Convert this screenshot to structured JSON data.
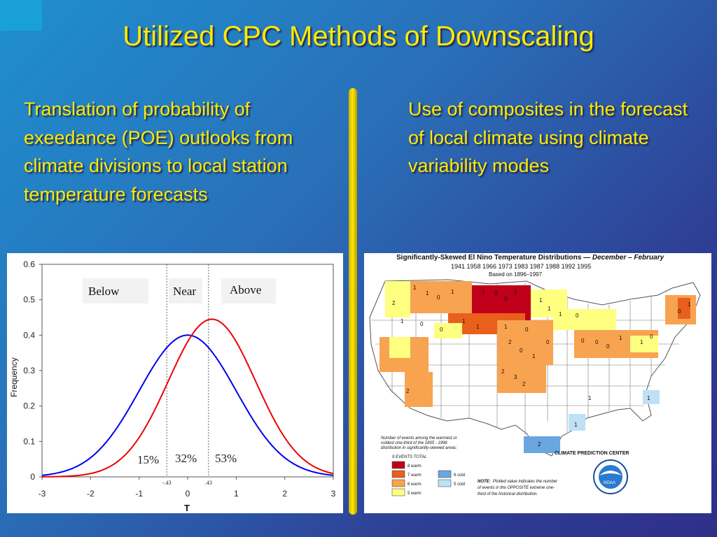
{
  "slide": {
    "title": "Utilized CPC Methods of Downscaling",
    "bullet_left": "Translation of probability of exeedance (POE) outlooks from climate divisions to local station temperature forecasts",
    "bullet_right": "Use of composites in the forecast of local climate using climate variability modes",
    "accent_color": "#ffea00"
  },
  "chart_data": {
    "type": "line",
    "xlabel": "T",
    "ylabel": "Frequency",
    "xlim": [
      -3,
      3
    ],
    "ylim": [
      0,
      0.6
    ],
    "x_ticks": [
      "-3",
      "-2",
      "-1",
      "0",
      "1",
      "2",
      "3"
    ],
    "y_ticks": [
      "0",
      "0.1",
      "0.2",
      "0.3",
      "0.4",
      "0.5",
      "0.6"
    ],
    "series": [
      {
        "color": "#0000ee",
        "mean": 0.0,
        "sd": 1.0,
        "peak": 0.4
      },
      {
        "color": "#ee0000",
        "mean": 0.5,
        "sd": 0.9,
        "peak": 0.445
      }
    ],
    "thresholds": [
      -0.43,
      0.43
    ],
    "threshold_labels": [
      "-.43",
      ".43"
    ],
    "category_labels": [
      "Below",
      "Near",
      "Above"
    ],
    "percent_labels": [
      "15%",
      "32%",
      "53%"
    ]
  },
  "map": {
    "title_prefix": "Significantly-Skewed El Nino Temperature Distributions",
    "title_dash": "—",
    "title_season": "December – February",
    "years": "1941  1958  1966  1973  1983  1987  1988  1992  1995",
    "based_on": "Based on 1896–1997",
    "legend_note_1": "Number of events among the warmest or",
    "legend_note_2": "coldest one-third of the 1895 - 1996",
    "legend_note_3": "distribution in significantly-skewed areas:",
    "legend_total": "9 EVENTS TOTAL",
    "legend_warm": [
      {
        "label": "8 warm",
        "color": "#c0001a"
      },
      {
        "label": "7 warm",
        "color": "#e8601c"
      },
      {
        "label": "6 warm",
        "color": "#f7a350"
      },
      {
        "label": "5 warm",
        "color": "#ffff80"
      }
    ],
    "legend_cold": [
      {
        "label": "6 cold",
        "color": "#6aa6e0"
      },
      {
        "label": "5 cold",
        "color": "#bfe0f5"
      }
    ],
    "note_label": "NOTE:",
    "note_1": "Plotted value indicates the number",
    "note_2": "of events in the OPPOSITE extreme one-",
    "note_3": "third of the historical distribution.",
    "center": "CLIMATE PREDICTION CENTER",
    "logo": "NOAA"
  }
}
